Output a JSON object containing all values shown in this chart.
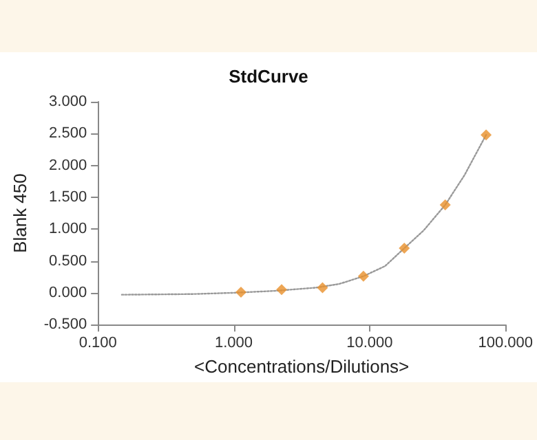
{
  "chart_data": {
    "type": "scatter",
    "title": "StdCurve",
    "xlabel": "<Concentrations/Dilutions>",
    "ylabel": "Blank 450",
    "log": "x",
    "xlim": [
      0.1,
      100
    ],
    "xticks": [
      {
        "value": 0.1,
        "label": "0.100"
      },
      {
        "value": 1,
        "label": "1.000"
      },
      {
        "value": 10,
        "label": "10.000"
      },
      {
        "value": 100,
        "label": "100.000"
      }
    ],
    "ylim": [
      -0.5,
      3
    ],
    "yticks": [
      {
        "value": -0.5,
        "label": "-0.500"
      },
      {
        "value": 0,
        "label": "0.000"
      },
      {
        "value": 0.5,
        "label": "0.500"
      },
      {
        "value": 1,
        "label": "1.000"
      },
      {
        "value": 1.5,
        "label": "1.500"
      },
      {
        "value": 2,
        "label": "2.000"
      },
      {
        "value": 2.5,
        "label": "2.500"
      },
      {
        "value": 3,
        "label": "3.000"
      }
    ],
    "grid": false,
    "series": [
      {
        "type": "line",
        "color": "#999999",
        "marker": "none",
        "line_style": "dotted",
        "x": [
          0.15,
          0.5,
          1,
          2,
          4,
          6,
          9,
          13,
          18,
          25,
          36,
          50,
          72
        ],
        "values": [
          -0.03,
          -0.02,
          0,
          0.03,
          0.08,
          0.14,
          0.26,
          0.42,
          0.7,
          0.98,
          1.38,
          1.85,
          2.48
        ]
      },
      {
        "color": "#e8902a",
        "marker": "diamond",
        "x": [
          1.13,
          2.25,
          4.5,
          9,
          18,
          36,
          72
        ],
        "values": [
          0.01,
          0.05,
          0.08,
          0.26,
          0.7,
          1.38,
          2.48
        ]
      }
    ]
  }
}
